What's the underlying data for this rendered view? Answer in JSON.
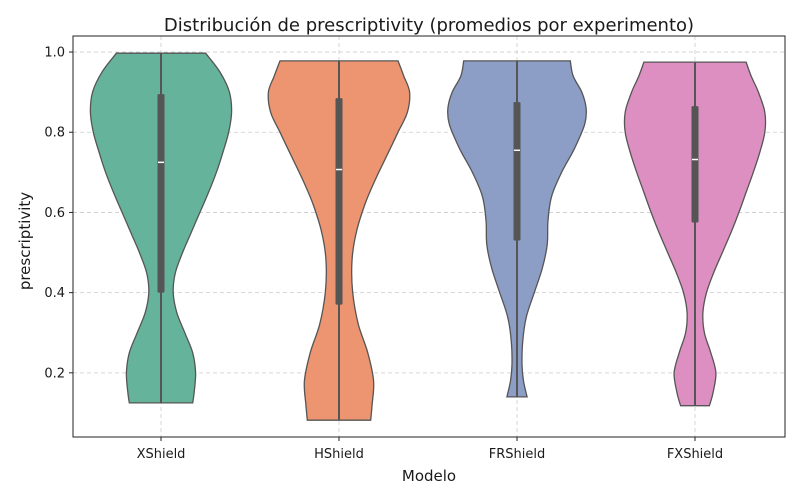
{
  "chart_data": {
    "type": "violin",
    "title": "Distribución de prescriptivity (promedios por experimento)",
    "xlabel": "Modelo",
    "ylabel": "prescriptivity",
    "ylim": [
      0.04,
      1.04
    ],
    "yticks": [
      "0.2",
      "0.4",
      "0.6",
      "0.8",
      "1.0"
    ],
    "ytick_values": [
      0.2,
      0.4,
      0.6,
      0.8,
      1.0
    ],
    "grid": true,
    "categories": [
      "XShield",
      "HShield",
      "FRShield",
      "FXShield"
    ],
    "colors": [
      "#66b39b",
      "#ec9570",
      "#8c9ec6",
      "#dc8fc0"
    ],
    "series": [
      {
        "name": "XShield",
        "min": 0.125,
        "q1": 0.4,
        "median": 0.725,
        "q3": 0.895,
        "max": 0.997,
        "density": [
          [
            0.125,
            0.44
          ],
          [
            0.15,
            0.46
          ],
          [
            0.2,
            0.48
          ],
          [
            0.25,
            0.44
          ],
          [
            0.3,
            0.33
          ],
          [
            0.35,
            0.22
          ],
          [
            0.4,
            0.17
          ],
          [
            0.45,
            0.2
          ],
          [
            0.5,
            0.3
          ],
          [
            0.55,
            0.42
          ],
          [
            0.6,
            0.54
          ],
          [
            0.65,
            0.66
          ],
          [
            0.7,
            0.77
          ],
          [
            0.75,
            0.86
          ],
          [
            0.8,
            0.94
          ],
          [
            0.85,
            0.98
          ],
          [
            0.9,
            0.95
          ],
          [
            0.95,
            0.82
          ],
          [
            0.997,
            0.62
          ]
        ]
      },
      {
        "name": "HShield",
        "min": 0.082,
        "q1": 0.37,
        "median": 0.707,
        "q3": 0.885,
        "max": 0.978,
        "density": [
          [
            0.082,
            0.44
          ],
          [
            0.12,
            0.46
          ],
          [
            0.18,
            0.48
          ],
          [
            0.25,
            0.4
          ],
          [
            0.32,
            0.27
          ],
          [
            0.4,
            0.19
          ],
          [
            0.48,
            0.18
          ],
          [
            0.55,
            0.24
          ],
          [
            0.62,
            0.36
          ],
          [
            0.68,
            0.5
          ],
          [
            0.74,
            0.66
          ],
          [
            0.8,
            0.82
          ],
          [
            0.85,
            0.95
          ],
          [
            0.9,
            0.98
          ],
          [
            0.94,
            0.9
          ],
          [
            0.978,
            0.82
          ]
        ]
      },
      {
        "name": "FRShield",
        "min": 0.14,
        "q1": 0.53,
        "median": 0.755,
        "q3": 0.875,
        "max": 0.978,
        "density": [
          [
            0.14,
            0.14
          ],
          [
            0.18,
            0.09
          ],
          [
            0.22,
            0.07
          ],
          [
            0.28,
            0.08
          ],
          [
            0.34,
            0.13
          ],
          [
            0.4,
            0.24
          ],
          [
            0.46,
            0.35
          ],
          [
            0.52,
            0.42
          ],
          [
            0.58,
            0.43
          ],
          [
            0.64,
            0.48
          ],
          [
            0.7,
            0.62
          ],
          [
            0.76,
            0.8
          ],
          [
            0.82,
            0.94
          ],
          [
            0.86,
            0.96
          ],
          [
            0.9,
            0.9
          ],
          [
            0.94,
            0.78
          ],
          [
            0.978,
            0.74
          ]
        ]
      },
      {
        "name": "FXShield",
        "min": 0.118,
        "q1": 0.575,
        "median": 0.732,
        "q3": 0.865,
        "max": 0.975,
        "density": [
          [
            0.118,
            0.2
          ],
          [
            0.15,
            0.25
          ],
          [
            0.2,
            0.29
          ],
          [
            0.25,
            0.22
          ],
          [
            0.3,
            0.13
          ],
          [
            0.35,
            0.11
          ],
          [
            0.4,
            0.16
          ],
          [
            0.45,
            0.26
          ],
          [
            0.5,
            0.38
          ],
          [
            0.55,
            0.5
          ],
          [
            0.6,
            0.61
          ],
          [
            0.65,
            0.71
          ],
          [
            0.7,
            0.81
          ],
          [
            0.75,
            0.9
          ],
          [
            0.8,
            0.97
          ],
          [
            0.85,
            0.97
          ],
          [
            0.9,
            0.88
          ],
          [
            0.94,
            0.78
          ],
          [
            0.975,
            0.71
          ]
        ]
      }
    ]
  }
}
